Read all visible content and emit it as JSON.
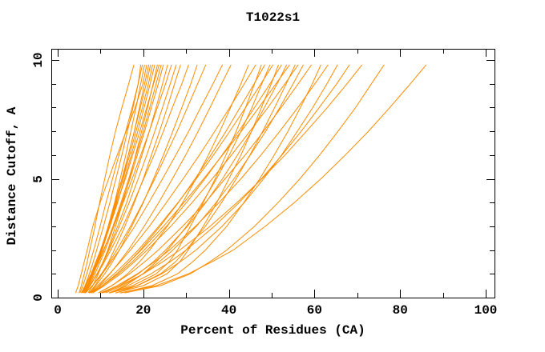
{
  "chart_data": {
    "type": "line",
    "title": "T1022s1",
    "xlabel": "Percent of Residues (CA)",
    "ylabel": "Distance Cutoff, A",
    "xlim": [
      0,
      100
    ],
    "ylim": [
      0,
      10
    ],
    "grid": false,
    "legend": "none",
    "box": true,
    "ticks_inward_all_sides": true,
    "line_color": "#FF8C00",
    "axis_color": "#000000",
    "x_major_ticks": [
      0,
      20,
      40,
      60,
      80,
      100
    ],
    "x_minor_ticks": [
      10,
      30,
      50,
      70,
      90
    ],
    "y_major_ticks": [
      0,
      5,
      10
    ],
    "y_minor_ticks": [
      1,
      2,
      3,
      4,
      6,
      7,
      8,
      9
    ],
    "cutoff_levels": [
      0.2,
      0.5,
      1,
      1.5,
      2,
      3,
      4,
      5,
      6,
      7,
      8,
      9,
      9.8
    ],
    "series_note": "each series = percent of residues (x) at each cutoff level (y); one orange curve per predicted model",
    "series": [
      [
        5.0,
        5.5,
        6.2,
        6.9,
        7.5,
        8.7,
        9.8,
        11.0,
        12.2,
        13.5,
        15.0,
        16.6,
        17.8
      ],
      [
        5.2,
        5.9,
        6.8,
        7.6,
        8.4,
        9.9,
        11.3,
        12.8,
        14.3,
        15.9,
        17.4,
        18.8,
        19.4
      ],
      [
        5.7,
        6.4,
        7.4,
        8.3,
        9.1,
        10.7,
        12.2,
        13.6,
        15.0,
        16.3,
        17.6,
        18.8,
        19.8
      ],
      [
        6.4,
        7.2,
        8.4,
        9.3,
        10.2,
        11.8,
        13.3,
        14.6,
        15.9,
        17.1,
        18.3,
        19.4,
        20.3
      ],
      [
        4.2,
        4.8,
        5.5,
        6.2,
        6.9,
        8.2,
        9.9,
        11.9,
        13.9,
        16.0,
        18.1,
        19.9,
        20.8
      ],
      [
        6.1,
        7.0,
        8.3,
        9.4,
        10.4,
        12.1,
        13.7,
        15.2,
        16.5,
        17.9,
        19.1,
        20.3,
        21.3
      ],
      [
        6.2,
        7.0,
        8.1,
        9.1,
        10.1,
        11.8,
        13.4,
        15.0,
        16.5,
        17.9,
        19.3,
        20.7,
        21.7
      ],
      [
        5.5,
        6.4,
        7.8,
        8.9,
        10.0,
        11.9,
        13.6,
        15.3,
        16.8,
        18.3,
        19.8,
        21.2,
        22.2
      ],
      [
        5.9,
        6.9,
        8.1,
        9.3,
        10.3,
        12.2,
        14.0,
        15.6,
        17.2,
        18.7,
        20.2,
        21.6,
        22.7
      ],
      [
        7.1,
        8.2,
        9.5,
        10.6,
        11.7,
        13.5,
        15.2,
        16.8,
        18.2,
        19.6,
        21.0,
        22.3,
        23.3
      ],
      [
        5.8,
        6.6,
        7.9,
        9.0,
        10.1,
        12.1,
        13.9,
        15.8,
        17.5,
        19.2,
        20.8,
        22.4,
        23.7
      ],
      [
        5.7,
        6.8,
        8.3,
        9.6,
        10.8,
        12.9,
        14.8,
        16.6,
        18.3,
        20.0,
        21.5,
        23.0,
        24.2
      ],
      [
        6.4,
        7.4,
        8.7,
        9.9,
        11.1,
        13.1,
        15.0,
        16.9,
        18.6,
        20.3,
        21.9,
        23.5,
        24.7
      ],
      [
        6.4,
        7.6,
        9.2,
        10.6,
        11.8,
        14.0,
        16.1,
        17.9,
        19.7,
        21.4,
        23.0,
        24.5,
        25.7
      ],
      [
        5.5,
        6.5,
        8.1,
        9.4,
        10.7,
        13.1,
        15.3,
        17.4,
        19.4,
        21.4,
        23.3,
        25.2,
        26.6
      ],
      [
        6.3,
        7.5,
        9.2,
        10.7,
        12.0,
        14.4,
        16.7,
        18.8,
        20.8,
        22.7,
        24.5,
        26.3,
        27.7
      ],
      [
        7.4,
        8.7,
        10.4,
        11.9,
        13.2,
        15.7,
        17.9,
        20.0,
        21.9,
        23.8,
        25.6,
        27.3,
        28.7
      ],
      [
        6.2,
        7.5,
        9.3,
        10.9,
        12.4,
        15.2,
        17.7,
        20.1,
        22.5,
        24.7,
        26.8,
        29.0,
        30.6
      ],
      [
        7.3,
        8.9,
        11.0,
        12.8,
        14.4,
        17.3,
        20.0,
        22.4,
        24.7,
        26.9,
        29.0,
        31.1,
        32.6
      ],
      [
        6.5,
        8.1,
        10.2,
        12.1,
        13.8,
        17.0,
        19.9,
        22.7,
        25.3,
        27.9,
        30.3,
        32.7,
        34.6
      ],
      [
        6.5,
        8.1,
        10.4,
        12.4,
        14.4,
        18.0,
        21.3,
        24.5,
        27.6,
        30.6,
        33.4,
        36.3,
        38.5
      ],
      [
        7.9,
        9.7,
        12.2,
        14.4,
        16.5,
        20.2,
        23.6,
        26.8,
        29.9,
        32.8,
        35.6,
        38.3,
        40.5
      ],
      [
        9.6,
        12.7,
        16.3,
        19.1,
        21.5,
        25.6,
        29.2,
        32.3,
        35.2,
        37.9,
        40.4,
        42.8,
        44.6
      ],
      [
        7.3,
        9.3,
        12.1,
        14.6,
        17.0,
        21.4,
        25.4,
        29.3,
        33.1,
        36.7,
        40.2,
        43.6,
        46.3
      ],
      [
        12.0,
        17.5,
        23.0,
        26.0,
        28.0,
        31.0,
        34.0,
        36.8,
        39.3,
        41.7,
        43.9,
        46.0,
        47.6
      ],
      [
        7.8,
        10.4,
        13.8,
        16.7,
        19.3,
        23.9,
        28.2,
        32.1,
        35.8,
        39.3,
        42.6,
        45.9,
        48.4
      ],
      [
        12.2,
        15.8,
        19.9,
        23.0,
        25.7,
        30.1,
        33.8,
        37.1,
        40.1,
        42.8,
        45.4,
        47.7,
        49.6
      ],
      [
        7.4,
        9.9,
        13.2,
        16.1,
        18.8,
        23.6,
        28.1,
        32.4,
        36.4,
        40.2,
        43.9,
        47.5,
        50.3
      ],
      [
        13.5,
        20.0,
        25.5,
        28.5,
        30.5,
        34.0,
        37.2,
        40.0,
        42.8,
        45.3,
        47.6,
        49.9,
        51.6
      ],
      [
        7.6,
        10.5,
        14.2,
        17.4,
        20.2,
        25.4,
        30.1,
        34.4,
        38.4,
        42.3,
        46.0,
        49.6,
        52.3
      ],
      [
        10.7,
        14.4,
        18.8,
        22.3,
        25.2,
        30.3,
        34.6,
        38.5,
        42.0,
        45.3,
        48.3,
        51.3,
        53.5
      ],
      [
        8.1,
        10.5,
        13.8,
        16.7,
        19.5,
        24.7,
        29.5,
        34.1,
        38.5,
        42.9,
        47.0,
        51.0,
        54.2
      ],
      [
        12.2,
        18.5,
        24.0,
        27.5,
        30.0,
        34.5,
        38.3,
        41.7,
        44.9,
        47.9,
        50.7,
        53.4,
        55.5
      ],
      [
        8.2,
        10.9,
        14.7,
        17.9,
        20.9,
        26.4,
        31.4,
        36.1,
        40.6,
        44.9,
        49.1,
        53.1,
        56.2
      ],
      [
        11.2,
        15.2,
        20.0,
        23.7,
        26.9,
        32.4,
        37.0,
        41.2,
        45.0,
        48.6,
        51.9,
        55.0,
        57.4
      ],
      [
        9.5,
        12.6,
        16.8,
        20.3,
        23.5,
        29.2,
        34.5,
        39.1,
        43.8,
        48.1,
        52.2,
        56.2,
        59.3
      ],
      [
        14.8,
        22.0,
        28.0,
        31.5,
        34.5,
        39.5,
        43.5,
        47.2,
        50.6,
        53.8,
        56.7,
        59.5,
        61.5
      ],
      [
        10.1,
        13.9,
        18.6,
        22.6,
        26.1,
        32.2,
        37.7,
        42.8,
        47.5,
        51.9,
        56.1,
        60.1,
        63.2
      ],
      [
        13.6,
        18.6,
        24.3,
        28.6,
        32.3,
        38.4,
        43.6,
        48.1,
        52.3,
        56.0,
        59.6,
        62.9,
        65.4
      ],
      [
        12.0,
        16.4,
        21.8,
        26.2,
        30.0,
        36.6,
        42.4,
        47.6,
        52.4,
        56.9,
        61.1,
        65.2,
        68.2
      ],
      [
        10.3,
        14.6,
        20.0,
        24.5,
        28.5,
        35.6,
        41.9,
        47.7,
        53.1,
        58.1,
        63.0,
        67.6,
        71.1
      ],
      [
        15.6,
        24.0,
        31.0,
        35.5,
        39.5,
        46.0,
        51.5,
        56.6,
        61.2,
        65.5,
        69.6,
        73.3,
        76.3
      ],
      [
        14.5,
        23.0,
        30.5,
        36.0,
        41.0,
        48.5,
        55.3,
        61.5,
        67.2,
        72.6,
        77.6,
        82.4,
        86.1
      ]
    ]
  }
}
